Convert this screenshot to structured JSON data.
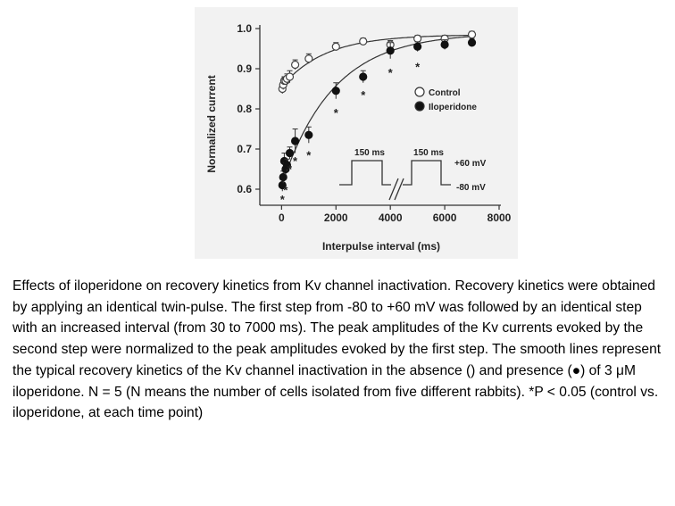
{
  "figure": {
    "chart_data": {
      "type": "scatter",
      "title": "",
      "xlabel": "Interpulse interval (ms)",
      "ylabel": "Normalized current",
      "xlim": [
        -800,
        8000
      ],
      "ylim": [
        0.56,
        1.0
      ],
      "x_ticks": [
        0,
        2000,
        4000,
        6000,
        8000
      ],
      "x_tick_labels": [
        "0",
        "2000",
        "4000",
        "6000",
        "8000"
      ],
      "y_ticks": [
        0.6,
        0.7,
        0.8,
        0.9,
        1.0
      ],
      "y_tick_labels": [
        "0.6",
        "0.7",
        "0.8",
        "0.9",
        "1.0"
      ],
      "grid": false,
      "legend_position": "right",
      "series": [
        {
          "name": "Control",
          "marker": "open-circle",
          "color": "#444444",
          "x": [
            30,
            60,
            100,
            150,
            200,
            300,
            500,
            1000,
            2000,
            3000,
            4000,
            5000,
            6000,
            7000
          ],
          "y": [
            0.85,
            0.86,
            0.87,
            0.87,
            0.875,
            0.88,
            0.91,
            0.925,
            0.955,
            0.968,
            0.96,
            0.975,
            0.975,
            0.985
          ],
          "err": [
            0.012,
            0.012,
            0.01,
            0.01,
            0.012,
            0.015,
            0.012,
            0.012,
            0.01,
            0.008,
            0.01,
            0.008,
            0.008,
            0.008
          ]
        },
        {
          "name": "Iloperidone",
          "marker": "filled-circle",
          "color": "#111111",
          "x": [
            30,
            60,
            100,
            150,
            200,
            300,
            500,
            1000,
            2000,
            3000,
            4000,
            5000,
            6000,
            7000
          ],
          "y": [
            0.61,
            0.63,
            0.67,
            0.65,
            0.66,
            0.69,
            0.72,
            0.735,
            0.845,
            0.88,
            0.945,
            0.955,
            0.96,
            0.965
          ],
          "err": [
            0.015,
            0.015,
            0.02,
            0.015,
            0.015,
            0.015,
            0.03,
            0.02,
            0.02,
            0.015,
            0.02,
            0.012,
            0.012,
            0.01
          ]
        }
      ],
      "fit_curves": [
        {
          "series": "Control",
          "y0": 0.855,
          "ymax": 0.985,
          "tau": 1600
        },
        {
          "series": "Iloperidone",
          "y0": 0.61,
          "ymax": 0.99,
          "tau": 1900
        }
      ],
      "annotations": [
        {
          "text": "*",
          "x": 30,
          "y": 0.585
        },
        {
          "text": "*",
          "x": 150,
          "y": 0.608
        },
        {
          "text": "*",
          "x": 300,
          "y": 0.66
        },
        {
          "text": "*",
          "x": 500,
          "y": 0.68
        },
        {
          "text": "*",
          "x": 1000,
          "y": 0.695
        },
        {
          "text": "*",
          "x": 2000,
          "y": 0.8
        },
        {
          "text": "*",
          "x": 3000,
          "y": 0.845
        },
        {
          "text": "*",
          "x": 4000,
          "y": 0.9
        },
        {
          "text": "*",
          "x": 5000,
          "y": 0.915
        }
      ],
      "legend": [
        {
          "label": "Control",
          "marker": "open-circle"
        },
        {
          "label": "Iloperidone",
          "marker": "filled-circle"
        }
      ],
      "inset": {
        "pulse1_label": "150 ms",
        "pulse2_label": "150 ms",
        "high_label": "+60 mV",
        "low_label": "-80 mV"
      }
    }
  },
  "caption": {
    "text": "Effects of iloperidone on recovery kinetics from Kv channel inactivation. Recovery kinetics were obtained by applying an identical twin-pulse. The first step from -80 to +60 mV was followed by an identical step with an increased interval (from 30 to 7000 ms). The peak amplitudes of the Kv currents evoked by the second step were normalized to the peak amplitudes evoked by the first step. The smooth lines represent the typical recovery kinetics of the Kv channel inactivation in the absence () and presence (●) of 3 μM iloperidone. N = 5 (N means the number of cells isolated from five different rabbits). *P < 0.05 (control vs. iloperidone, at each time point)"
  }
}
